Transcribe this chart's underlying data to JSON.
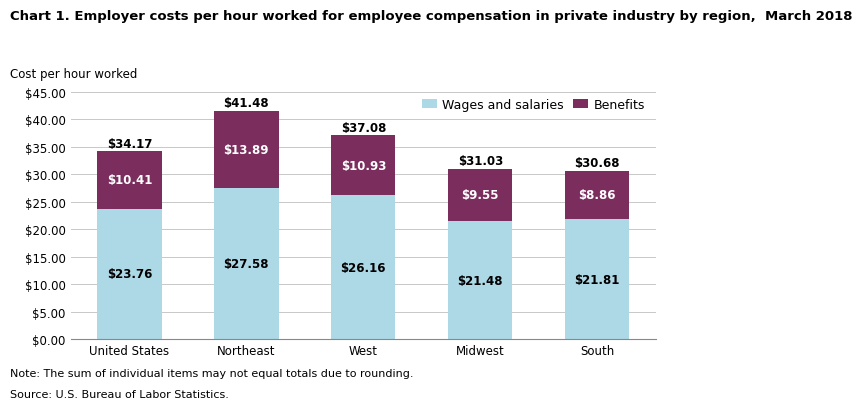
{
  "title_line1": "Chart 1. Employer costs per hour worked for employee compensation in private industry by region,  March 2018",
  "ylabel_text": "Cost per hour worked",
  "categories": [
    "United States",
    "Northeast",
    "West",
    "Midwest",
    "South"
  ],
  "wages": [
    23.76,
    27.58,
    26.16,
    21.48,
    21.81
  ],
  "benefits": [
    10.41,
    13.89,
    10.93,
    9.55,
    8.86
  ],
  "totals": [
    34.17,
    41.48,
    37.08,
    31.03,
    30.68
  ],
  "wages_color": "#add8e6",
  "benefits_color": "#7b2d5e",
  "wages_label": "Wages and salaries",
  "benefits_label": "Benefits",
  "ylim": [
    0,
    45
  ],
  "yticks": [
    0,
    5,
    10,
    15,
    20,
    25,
    30,
    35,
    40,
    45
  ],
  "note_line1": "Note: The sum of individual items may not equal totals due to rounding.",
  "note_line2": "Source: U.S. Bureau of Labor Statistics.",
  "bar_width": 0.55,
  "title_fontsize": 9.5,
  "ylabel_fontsize": 8.5,
  "tick_fontsize": 8.5,
  "legend_fontsize": 9,
  "label_fontsize": 8.5,
  "note_fontsize": 8,
  "wages_text_color": "black",
  "benefits_text_color": "white",
  "total_text_color": "black",
  "background_color": "#ffffff",
  "grid_color": "#c8c8c8"
}
